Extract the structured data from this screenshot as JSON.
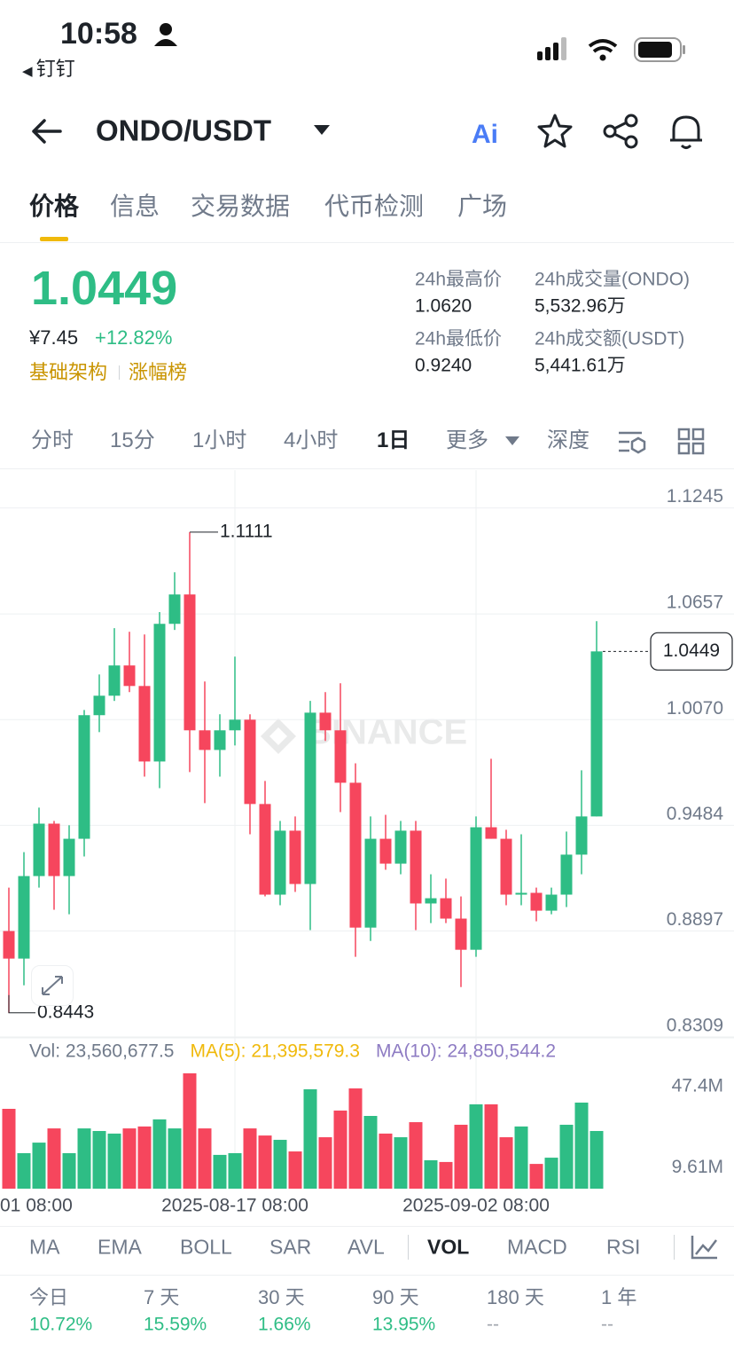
{
  "status": {
    "time": "10:58",
    "back_app": "钉钉"
  },
  "header": {
    "pair": "ONDO/USDT",
    "ai": "Ai"
  },
  "tabs": [
    "价格",
    "信息",
    "交易数据",
    "代币检测",
    "广场"
  ],
  "price": {
    "last": "1.0449",
    "cny": "¥7.45",
    "change": "+12.82%",
    "tags": [
      "基础架构",
      "涨幅榜"
    ]
  },
  "stats": [
    {
      "label": "24h最高价",
      "value": "1.0620"
    },
    {
      "label": "24h成交量(ONDO)",
      "value": "5,532.96万"
    },
    {
      "label": "24h最低价",
      "value": "0.9240"
    },
    {
      "label": "24h成交额(USDT)",
      "value": "5,441.61万"
    }
  ],
  "intervals": [
    "分时",
    "15分",
    "1小时",
    "4小时",
    "1日",
    "更多",
    "深度"
  ],
  "chart_data": [
    {
      "type": "candlestick",
      "watermark": "BINANCE",
      "up_color": "#2ebd85",
      "down_color": "#f6465d",
      "categories": [
        null,
        null,
        null,
        null,
        null,
        null,
        null,
        null,
        null,
        null,
        null,
        null,
        null,
        null,
        null,
        "2025-08-17 08:00",
        null,
        null,
        null,
        null,
        null,
        null,
        null,
        null,
        null,
        null,
        null,
        null,
        null,
        null,
        null,
        "2025-09-02 08:00",
        null,
        null,
        null,
        null,
        null,
        null,
        null,
        null
      ],
      "x_left_label": "01 08:00",
      "open": [
        0.8897,
        0.8744,
        0.9202,
        0.9493,
        0.9202,
        0.9409,
        1.0095,
        1.0203,
        1.0371,
        1.0257,
        0.9838,
        1.0602,
        1.0765,
        1.0011,
        0.9902,
        1.0011,
        1.007,
        0.9602,
        0.9099,
        0.9454,
        0.9158,
        1.0109,
        1.0011,
        0.972,
        0.8916,
        0.9409,
        0.9271,
        0.9454,
        0.905,
        0.9079,
        0.8966,
        0.8793,
        0.9473,
        0.9409,
        0.9099,
        0.9109,
        0.901,
        0.9099,
        0.9321,
        0.9533
      ],
      "high": [
        0.9138,
        0.9335,
        0.9582,
        0.9508,
        0.9484,
        1.0124,
        1.0321,
        1.0578,
        1.0558,
        1.0543,
        1.0667,
        1.0888,
        1.1111,
        1.0282,
        1.01,
        1.042,
        1.01,
        0.973,
        0.9508,
        0.9533,
        1.0174,
        1.0223,
        1.0272,
        0.9828,
        0.9533,
        0.9542,
        0.9508,
        0.9508,
        0.9212,
        0.9188,
        0.9089,
        0.9533,
        0.9853,
        0.9459,
        0.9434,
        0.9138,
        0.9138,
        0.9449,
        0.9789,
        1.0617
      ],
      "low": [
        0.8443,
        0.8596,
        0.9138,
        0.9015,
        0.899,
        0.9311,
        1.0001,
        1.0174,
        1.0223,
        0.9754,
        0.969,
        1.0568,
        0.9779,
        0.9607,
        0.9754,
        0.9927,
        0.9434,
        0.9089,
        0.904,
        0.9114,
        0.8902,
        0.9952,
        0.9557,
        0.8754,
        0.8842,
        0.9237,
        0.9212,
        0.8902,
        0.8941,
        0.8941,
        0.8586,
        0.8754,
        0.9409,
        0.904,
        0.904,
        0.8951,
        0.899,
        0.903,
        0.9212,
        0.9533
      ],
      "close": [
        0.8744,
        0.9202,
        0.9493,
        0.9202,
        0.9409,
        1.0095,
        1.0203,
        1.0371,
        1.0257,
        0.9838,
        1.0602,
        1.0765,
        1.0011,
        0.9902,
        1.0011,
        1.007,
        0.9602,
        0.9099,
        0.9454,
        0.9158,
        1.0109,
        1.0011,
        0.972,
        0.8916,
        0.9409,
        0.9271,
        0.9454,
        0.905,
        0.9079,
        0.8966,
        0.8793,
        0.9473,
        0.9409,
        0.9099,
        0.9109,
        0.901,
        0.9099,
        0.9321,
        0.9533,
        1.0449
      ],
      "ylim": [
        0.8304,
        1.1455
      ],
      "yticks": [
        1.1245,
        1.0657,
        {
          "value": 1.007,
          "label": "1.0070"
        },
        0.9484,
        0.8897,
        0.8309
      ],
      "high_label": 1.1111,
      "low_label": 0.8443,
      "last_price": 1.0449,
      "grid": true
    },
    {
      "type": "bar",
      "info": [
        "Vol: 23,560,677.5",
        "MA(5): 21,395,579.3",
        "MA(10): 24,850,544.2"
      ],
      "info_colors": [
        "#707a8a",
        "#f0b90b",
        "#8e7cc3"
      ],
      "values": [
        37.1,
        16.5,
        21.4,
        28.0,
        16.5,
        28.0,
        26.8,
        25.6,
        28.0,
        28.9,
        32.2,
        28.0,
        53.6,
        28.0,
        15.7,
        16.5,
        28.0,
        24.7,
        22.7,
        17.3,
        46.2,
        23.9,
        36.3,
        46.6,
        33.8,
        25.6,
        23.9,
        30.9,
        13.2,
        12.4,
        29.7,
        39.2,
        39.2,
        23.9,
        28.9,
        11.5,
        14.4,
        29.7,
        40.0,
        26.8
      ],
      "ylim": [
        0,
        55.65
      ],
      "yticks": [
        {
          "value": 47.4,
          "label": "47.4M"
        },
        {
          "value": 9.61,
          "label": "9.61M"
        }
      ]
    }
  ],
  "indicators": [
    "MA",
    "EMA",
    "BOLL",
    "SAR",
    "AVL",
    "VOL",
    "MACD",
    "RSI"
  ],
  "performance": [
    {
      "period": "今日",
      "value": "10.72%"
    },
    {
      "period": "7 天",
      "value": "15.59%"
    },
    {
      "period": "30 天",
      "value": "1.66%"
    },
    {
      "period": "90 天",
      "value": "13.95%"
    },
    {
      "period": "180 天",
      "value": "--"
    },
    {
      "period": "1 年",
      "value": "--"
    }
  ]
}
